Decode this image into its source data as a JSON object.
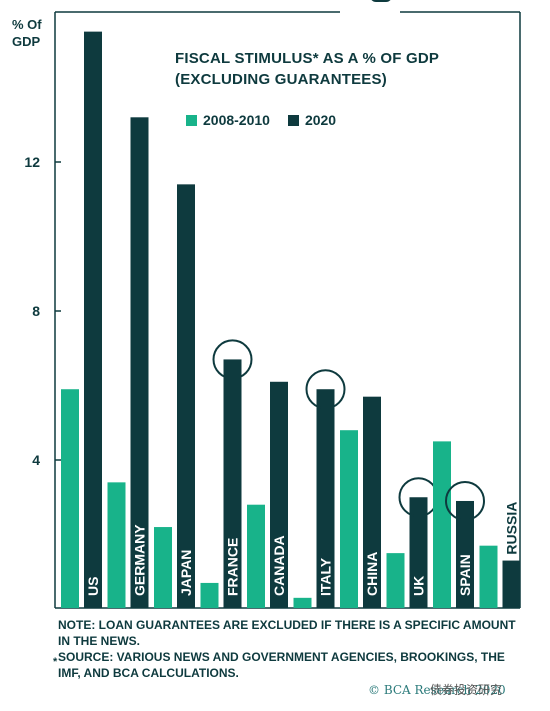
{
  "chart_data": {
    "type": "bar",
    "title": "FISCAL STIMULUS* AS A % OF GDP (EXCLUDING GUARANTEES)",
    "ylabel": "% Of GDP",
    "ylim": [
      0,
      16
    ],
    "yticks": [
      4,
      8,
      12
    ],
    "categories": [
      "US",
      "GERMANY",
      "JAPAN",
      "FRANCE",
      "CANADA",
      "ITALY",
      "CHINA",
      "UK",
      "SPAIN",
      "RUSSIA"
    ],
    "series": [
      {
        "name": "2008-2010",
        "color": "#18b38a",
        "values": [
          5.9,
          3.4,
          2.2,
          0.7,
          2.8,
          0.3,
          4.8,
          1.5,
          4.5,
          1.7
        ]
      },
      {
        "name": "2020",
        "color": "#0e3a3e",
        "values": [
          15.5,
          13.2,
          11.4,
          6.7,
          6.1,
          5.9,
          5.7,
          3.0,
          2.9,
          1.3
        ]
      }
    ],
    "circled_categories": [
      "FRANCE",
      "ITALY",
      "UK",
      "SPAIN"
    ],
    "legend_position": "top-right",
    "grid": false
  },
  "text": {
    "axis_label": "% Of GDP",
    "title_line1": "FISCAL STIMULUS* AS A % OF GDP",
    "title_line2": "(EXCLUDING GUARANTEES)",
    "note": "NOTE: LOAN GUARANTEES ARE EXCLUDED IF THERE IS A SPECIFIC AMOUNT IN THE NEWS.",
    "source": "SOURCE: VARIOUS NEWS AND GOVERNMENT AGENCIES, BROOKINGS, THE IMF, AND BCA CALCULATIONS.",
    "asterisk": "*",
    "copyright": "© BCA Research 2020",
    "watermark": "债券投资研究"
  },
  "colors": {
    "accent_green": "#18b38a",
    "dark_teal": "#0e3a3e"
  }
}
